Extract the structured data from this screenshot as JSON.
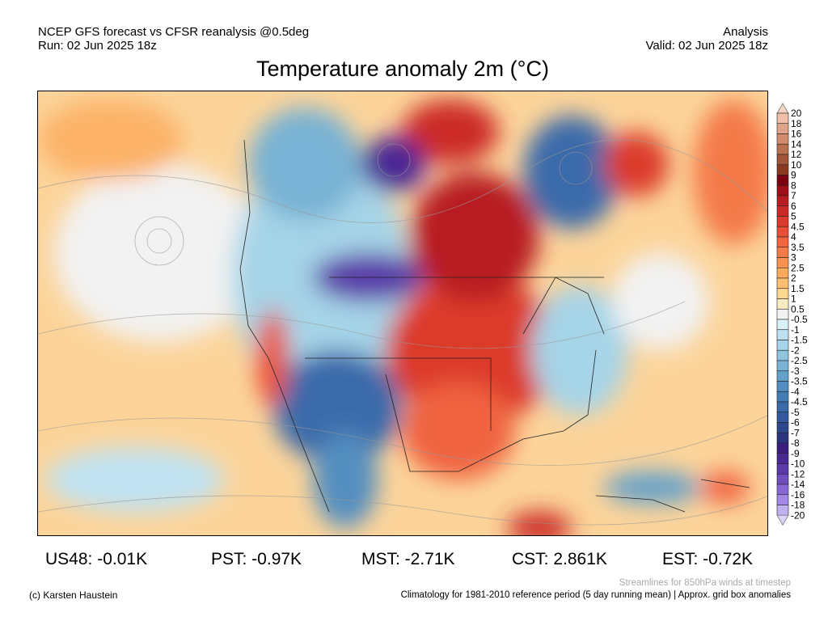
{
  "header": {
    "model": "NCEP GFS forecast vs CFSR reanalysis @0.5deg",
    "run": "Run: 02 Jun 2025 18z",
    "type": "Analysis",
    "valid": "Valid: 02 Jun 2025 18z",
    "title": "Temperature anomaly 2m (°C)"
  },
  "stats": [
    {
      "label": "US48: -0.01K"
    },
    {
      "label": "PST: -0.97K"
    },
    {
      "label": "MST: -2.71K"
    },
    {
      "label": "CST: 2.861K"
    },
    {
      "label": "EST: -0.72K"
    }
  ],
  "footer": {
    "credit": "(c) Karsten Haustein",
    "streamlines": "Streamlines for 850hPa winds at timestep",
    "climatology": "Climatology for 1981-2010 reference period (5 day running mean) | Approx. grid box anomalies"
  },
  "colorbar": {
    "labels": [
      "20",
      "18",
      "16",
      "14",
      "12",
      "10",
      "9",
      "8",
      "7",
      "6",
      "5",
      "4.5",
      "4",
      "3.5",
      "3",
      "2.5",
      "2",
      "1.5",
      "1",
      "0.5",
      "-0.5",
      "-1",
      "-1.5",
      "-2",
      "-2.5",
      "-3",
      "-3.5",
      "-4",
      "-4.5",
      "-5",
      "-6",
      "-7",
      "-8",
      "-9",
      "-10",
      "-12",
      "-14",
      "-16",
      "-18",
      "-20"
    ],
    "colors": [
      "#f0c0a8",
      "#e0a488",
      "#d08a6c",
      "#b87050",
      "#a05438",
      "#8c3820",
      "#7a0010",
      "#a00e18",
      "#b81c20",
      "#cc2a28",
      "#dc3a2c",
      "#e84e34",
      "#f06440",
      "#f47a48",
      "#f89250",
      "#fcaa5c",
      "#fec070",
      "#fed890",
      "#f8ecc0",
      "#f2f2f2",
      "#daf0fa",
      "#bfe2f2",
      "#a6d4e8",
      "#8ec4de",
      "#78b2d4",
      "#64a0ca",
      "#528ec0",
      "#447cb6",
      "#3a6aaa",
      "#34589c",
      "#2e468e",
      "#2c3480",
      "#3a1e80",
      "#4a2894",
      "#5a3aa8",
      "#7050c0",
      "#8868d4",
      "#a088e4",
      "#c0b0f0"
    ],
    "top_color": "#f6d4c4",
    "bottom_color": "#dcd4f8"
  }
}
